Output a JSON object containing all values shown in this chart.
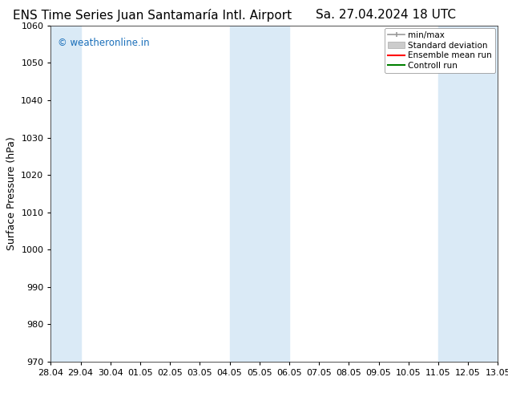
{
  "title_left": "ENS Time Series Juan Santamaría Intl. Airport",
  "title_right": "Sa. 27.04.2024 18 UTC",
  "ylabel": "Surface Pressure (hPa)",
  "ylim": [
    970,
    1060
  ],
  "yticks": [
    970,
    980,
    990,
    1000,
    1010,
    1020,
    1030,
    1040,
    1050,
    1060
  ],
  "xtick_labels": [
    "28.04",
    "29.04",
    "30.04",
    "01.05",
    "02.05",
    "03.05",
    "04.05",
    "05.05",
    "06.05",
    "07.05",
    "08.05",
    "09.05",
    "10.05",
    "11.05",
    "12.05",
    "13.05"
  ],
  "xtick_positions": [
    0,
    1,
    2,
    3,
    4,
    5,
    6,
    7,
    8,
    9,
    10,
    11,
    12,
    13,
    14,
    15
  ],
  "shaded_bands": [
    {
      "xstart": 0,
      "xend": 1,
      "color": "#daeaf6"
    },
    {
      "xstart": 6,
      "xend": 8,
      "color": "#daeaf6"
    },
    {
      "xstart": 13,
      "xend": 15,
      "color": "#daeaf6"
    }
  ],
  "watermark": "© weatheronline.in",
  "watermark_color": "#1a6fba",
  "title_fontsize": 11,
  "axis_fontsize": 9,
  "tick_fontsize": 8,
  "background_color": "#ffffff",
  "plot_bg_color": "#ffffff",
  "legend_fontsize": 7.5
}
